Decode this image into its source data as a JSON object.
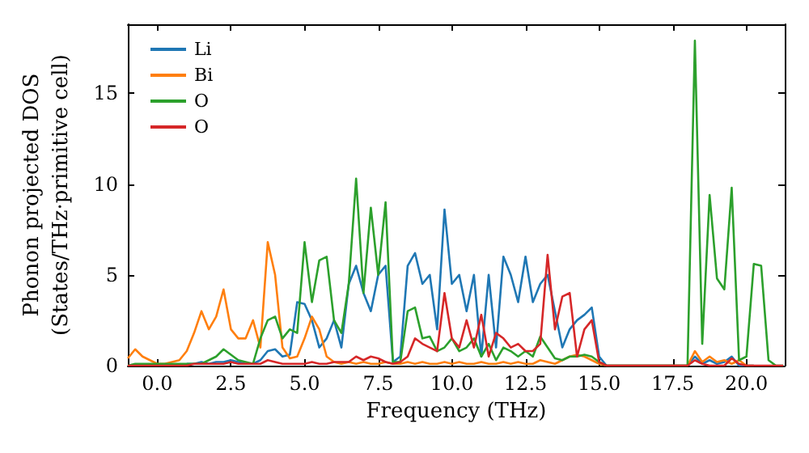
{
  "chart_data": {
    "type": "line",
    "xlabel": "Frequency (THz)",
    "ylabel": "Phonon projected DOS\n(States/THz·primitive cell)",
    "x": [
      -1,
      -0.75,
      -0.5,
      -0.25,
      0,
      0.25,
      0.5,
      0.75,
      1,
      1.25,
      1.5,
      1.75,
      2,
      2.25,
      2.5,
      2.75,
      3,
      3.25,
      3.5,
      3.75,
      4,
      4.25,
      4.5,
      4.75,
      5,
      5.25,
      5.5,
      5.75,
      6,
      6.25,
      6.5,
      6.75,
      7,
      7.25,
      7.5,
      7.75,
      8,
      8.25,
      8.5,
      8.75,
      9,
      9.25,
      9.5,
      9.75,
      10,
      10.25,
      10.5,
      10.75,
      11,
      11.25,
      11.5,
      11.75,
      12,
      12.25,
      12.5,
      12.75,
      13,
      13.25,
      13.5,
      13.75,
      14,
      14.25,
      14.5,
      14.75,
      15,
      15.25,
      15.5,
      15.75,
      16,
      16.25,
      16.5,
      16.75,
      17,
      17.25,
      17.5,
      17.75,
      18,
      18.25,
      18.5,
      18.75,
      19,
      19.25,
      19.5,
      19.75,
      20,
      20.25,
      20.5,
      20.75,
      21,
      21.25
    ],
    "series": [
      {
        "name": "Li",
        "color": "#1f77b4",
        "values": [
          null,
          null,
          null,
          null,
          null,
          null,
          null,
          null,
          0.1,
          0.1,
          0.2,
          0.1,
          0.2,
          0.2,
          0.3,
          0.2,
          0.1,
          0.1,
          0.3,
          0.8,
          0.9,
          0.5,
          0.6,
          3.5,
          3.4,
          2.5,
          1.0,
          1.5,
          2.5,
          1.0,
          4.5,
          5.5,
          4.0,
          3.0,
          5.0,
          5.5,
          0.2,
          0.5,
          5.5,
          6.2,
          4.5,
          5.0,
          2.0,
          8.6,
          4.5,
          5.0,
          3.0,
          5.0,
          0.5,
          5.0,
          1.0,
          6.0,
          5.0,
          3.5,
          6.0,
          3.5,
          4.5,
          5.0,
          3.0,
          1.0,
          2.0,
          2.5,
          2.8,
          3.2,
          0.5,
          0,
          0,
          0,
          0,
          0,
          0,
          0,
          0,
          0,
          0,
          0,
          0,
          0.5,
          0.1,
          0.3,
          0.1,
          0.2,
          0.5,
          0,
          0,
          0,
          null,
          null,
          null,
          null
        ]
      },
      {
        "name": "Bi",
        "color": "#ff7f0e",
        "values": [
          0.4,
          0.9,
          0.5,
          0.3,
          0.1,
          0.1,
          0.2,
          0.3,
          0.8,
          1.8,
          3.0,
          2.0,
          2.7,
          4.2,
          2.0,
          1.5,
          1.5,
          2.5,
          1.0,
          6.8,
          5.0,
          1.0,
          0.4,
          0.5,
          1.5,
          2.7,
          2.0,
          0.5,
          0.2,
          0.1,
          0.2,
          0.1,
          0.2,
          0.1,
          0.1,
          0.2,
          0.1,
          0.1,
          0.2,
          0.1,
          0.2,
          0.1,
          0.1,
          0.2,
          0.1,
          0.2,
          0.1,
          0.1,
          0.2,
          0.1,
          0.1,
          0.2,
          0.1,
          0.2,
          0.1,
          0.1,
          0.3,
          0.2,
          0.1,
          0.3,
          0.5,
          0.6,
          0.5,
          0.3,
          0.1,
          0,
          0,
          0,
          0,
          0,
          0,
          0,
          0,
          0,
          0,
          0,
          0,
          0.8,
          0.2,
          0.5,
          0.2,
          0.3,
          0.1,
          0.3,
          0,
          0,
          null,
          null,
          null,
          null
        ]
      },
      {
        "name": "O",
        "color": "#2ca02c",
        "values": [
          0,
          0.1,
          0.1,
          0.1,
          0.1,
          0.1,
          0.1,
          0.1,
          0.1,
          0.1,
          0.1,
          0.3,
          0.5,
          0.9,
          0.6,
          0.3,
          0.2,
          0.1,
          1.5,
          2.5,
          2.7,
          1.5,
          2.0,
          1.8,
          6.8,
          3.5,
          5.8,
          6.0,
          2.5,
          1.8,
          4.5,
          10.3,
          4.0,
          8.7,
          5.0,
          9.0,
          0.2,
          0.2,
          3.0,
          3.2,
          1.5,
          1.6,
          0.8,
          1.0,
          1.5,
          0.8,
          1.0,
          1.5,
          0.5,
          1.2,
          0.3,
          1.0,
          0.8,
          0.5,
          0.8,
          0.5,
          1.6,
          1.0,
          0.4,
          0.3,
          0.5,
          0.5,
          0.6,
          0.5,
          0.2,
          0,
          0,
          0,
          0,
          0,
          0,
          0,
          0,
          0,
          0,
          0,
          0,
          17.9,
          1.2,
          9.4,
          4.8,
          4.2,
          9.8,
          0.3,
          0.5,
          5.6,
          5.5,
          0.3,
          0,
          0
        ]
      },
      {
        "name": "O",
        "color": "#d62728",
        "values": [
          0,
          0,
          0,
          0,
          0,
          0,
          0,
          0,
          0,
          0.1,
          0.1,
          0.1,
          0.1,
          0.1,
          0.2,
          0.1,
          0.1,
          0.1,
          0.1,
          0.3,
          0.2,
          0.1,
          0.1,
          0.1,
          0.1,
          0.2,
          0.1,
          0.1,
          0.2,
          0.2,
          0.2,
          0.5,
          0.3,
          0.5,
          0.4,
          0.2,
          0.1,
          0.2,
          0.5,
          1.5,
          1.2,
          1.0,
          0.8,
          4.0,
          1.5,
          1.0,
          2.5,
          1.0,
          2.8,
          0.5,
          1.8,
          1.5,
          1.0,
          1.2,
          0.8,
          0.8,
          1.2,
          6.1,
          2.0,
          3.8,
          4.0,
          0.5,
          2.0,
          2.5,
          0.2,
          0,
          0,
          0,
          0,
          0,
          0,
          0,
          0,
          0,
          0,
          0,
          0,
          0.3,
          0.1,
          0,
          0,
          0,
          0.4,
          0.1,
          0,
          0,
          0,
          0,
          0,
          0
        ]
      }
    ],
    "xlim": [
      -1,
      21.3
    ],
    "xticks": [
      {
        "value": 0,
        "label": "0.0"
      },
      {
        "value": 2.5,
        "label": "2.5"
      },
      {
        "value": 5,
        "label": "5.0"
      },
      {
        "value": 7.5,
        "label": "7.5"
      },
      {
        "value": 10,
        "label": "10.0"
      },
      {
        "value": 12.5,
        "label": "12.5"
      },
      {
        "value": 15,
        "label": "15.0"
      },
      {
        "value": 17.5,
        "label": "17.5"
      },
      {
        "value": 20,
        "label": "20.0"
      }
    ],
    "ylim": [
      0,
      18.8
    ],
    "yticks": [
      0,
      5,
      10,
      15
    ],
    "legend": "top left",
    "grid": false,
    "marker": "none",
    "line_style": "solid"
  }
}
